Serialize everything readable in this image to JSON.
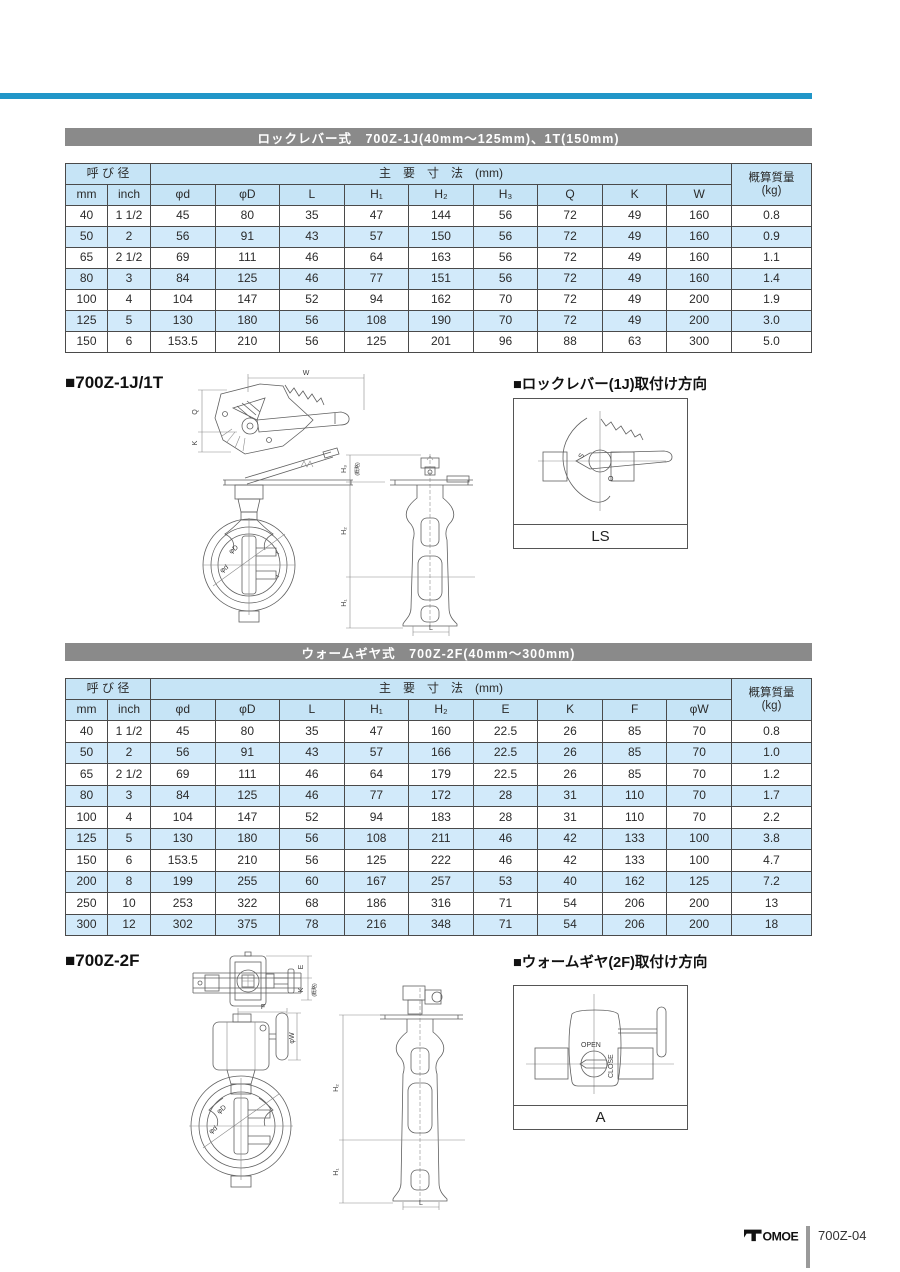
{
  "colors": {
    "accent_blue": "#2196c8",
    "bar_gray": "#8a8a8a",
    "table_blue": "#c6e4f6"
  },
  "section1": {
    "bar_title": "ロックレバー式　700Z-1J(40mm～125mm)、1T(150mm)",
    "drawing_title": "■700Z-1J/1T",
    "mounting_title": "■ロックレバー(1J)取付け方向",
    "mounting_code": "LS",
    "mounting_labels": {
      "s": "S",
      "o": "O"
    },
    "table": {
      "header": {
        "size_group": "呼 び 径",
        "dims_group": "主　要　寸　法　(mm)",
        "mass_line1": "概算質量",
        "mass_line2": "(kg)"
      },
      "columns": [
        "mm",
        "inch",
        "φd",
        "φD",
        "L",
        "H₁",
        "H₂",
        "H₃",
        "Q",
        "K",
        "W"
      ],
      "rows": [
        [
          "40",
          "1 1/2",
          "45",
          "80",
          "35",
          "47",
          "144",
          "56",
          "72",
          "49",
          "160",
          "0.8"
        ],
        [
          "50",
          "2",
          "56",
          "91",
          "43",
          "57",
          "150",
          "56",
          "72",
          "49",
          "160",
          "0.9"
        ],
        [
          "65",
          "2 1/2",
          "69",
          "111",
          "46",
          "64",
          "163",
          "56",
          "72",
          "49",
          "160",
          "1.1"
        ],
        [
          "80",
          "3",
          "84",
          "125",
          "46",
          "77",
          "151",
          "56",
          "72",
          "49",
          "160",
          "1.4"
        ],
        [
          "100",
          "4",
          "104",
          "147",
          "52",
          "94",
          "162",
          "70",
          "72",
          "49",
          "200",
          "1.9"
        ],
        [
          "125",
          "5",
          "130",
          "180",
          "56",
          "108",
          "190",
          "70",
          "72",
          "49",
          "200",
          "3.0"
        ],
        [
          "150",
          "6",
          "153.5",
          "210",
          "56",
          "125",
          "201",
          "96",
          "88",
          "63",
          "300",
          "5.0"
        ]
      ]
    },
    "drawing_labels": {
      "W": "W",
      "Q": "Q",
      "K": "K",
      "H1": "H₁",
      "H2": "H₂",
      "H3": "H₃",
      "L": "L",
      "phiD": "φD",
      "phid": "φd",
      "approx": "(概略)"
    }
  },
  "section2": {
    "bar_title": "ウォームギヤ式　700Z-2F(40mm～300mm)",
    "drawing_title": "■700Z-2F",
    "mounting_title": "■ウォームギヤ(2F)取付け方向",
    "mounting_code": "A",
    "mounting_labels": {
      "open": "OPEN",
      "close": "CLOSE"
    },
    "table": {
      "header": {
        "size_group": "呼 び 径",
        "dims_group": "主　要　寸　法　(mm)",
        "mass_line1": "概算質量",
        "mass_line2": "(kg)"
      },
      "columns": [
        "mm",
        "inch",
        "φd",
        "φD",
        "L",
        "H₁",
        "H₂",
        "E",
        "K",
        "F",
        "φW"
      ],
      "rows": [
        [
          "40",
          "1 1/2",
          "45",
          "80",
          "35",
          "47",
          "160",
          "22.5",
          "26",
          "85",
          "70",
          "0.8"
        ],
        [
          "50",
          "2",
          "56",
          "91",
          "43",
          "57",
          "166",
          "22.5",
          "26",
          "85",
          "70",
          "1.0"
        ],
        [
          "65",
          "2 1/2",
          "69",
          "111",
          "46",
          "64",
          "179",
          "22.5",
          "26",
          "85",
          "70",
          "1.2"
        ],
        [
          "80",
          "3",
          "84",
          "125",
          "46",
          "77",
          "172",
          "28",
          "31",
          "110",
          "70",
          "1.7"
        ],
        [
          "100",
          "4",
          "104",
          "147",
          "52",
          "94",
          "183",
          "28",
          "31",
          "110",
          "70",
          "2.2"
        ],
        [
          "125",
          "5",
          "130",
          "180",
          "56",
          "108",
          "211",
          "46",
          "42",
          "133",
          "100",
          "3.8"
        ],
        [
          "150",
          "6",
          "153.5",
          "210",
          "56",
          "125",
          "222",
          "46",
          "42",
          "133",
          "100",
          "4.7"
        ],
        [
          "200",
          "8",
          "199",
          "255",
          "60",
          "167",
          "257",
          "53",
          "40",
          "162",
          "125",
          "7.2"
        ],
        [
          "250",
          "10",
          "253",
          "322",
          "68",
          "186",
          "316",
          "71",
          "54",
          "206",
          "200",
          "13"
        ],
        [
          "300",
          "12",
          "302",
          "375",
          "78",
          "216",
          "348",
          "71",
          "54",
          "206",
          "200",
          "18"
        ]
      ]
    },
    "drawing_labels": {
      "E": "E",
      "K": "K",
      "F": "F",
      "phiW": "φW",
      "H1": "H₁",
      "H2": "H₂",
      "L": "L",
      "phiD": "φD",
      "phid": "φd",
      "approx": "(概略)"
    }
  },
  "footer": {
    "brand": "TOMOE",
    "code": "700Z-04"
  }
}
